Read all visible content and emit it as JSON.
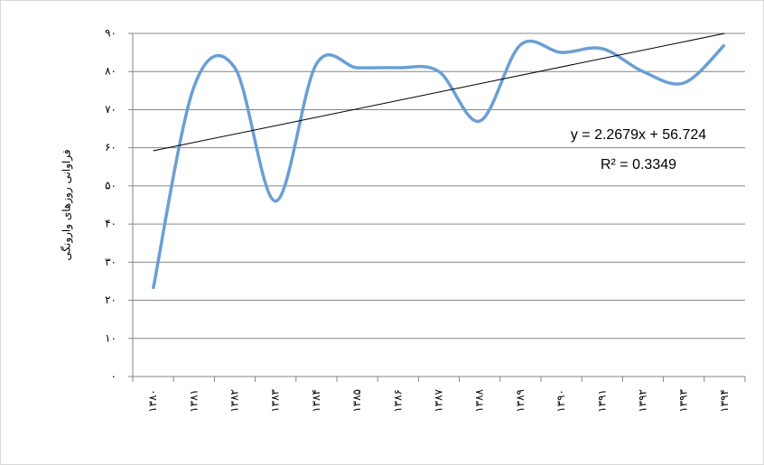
{
  "chart_data": {
    "type": "line",
    "y_axis_label": "فراوانی روزهای وارونگی",
    "categories": [
      "۱۳۸۰",
      "۱۳۸۱",
      "۱۳۸۲",
      "۱۳۸۳",
      "۱۳۸۴",
      "۱۳۸۵",
      "۱۳۸۶",
      "۱۳۸۷",
      "۱۳۸۸",
      "۱۳۸۹",
      "۱۳۹۰",
      "۱۳۹۱",
      "۱۳۹۲",
      "۱۳۹۳",
      "۱۳۹۴"
    ],
    "series": [
      {
        "color": "#6a9fd4",
        "values": [
          23,
          76,
          81,
          46,
          82,
          81,
          81,
          80,
          67,
          87,
          85,
          86,
          80,
          77,
          87
        ]
      }
    ],
    "trendline": true,
    "annotations": [
      "y = 2.2679x + 56.724",
      "R² = 0.3349"
    ],
    "ylim": [
      0,
      90
    ],
    "yticks": [
      {
        "value": 0,
        "label": "۰"
      },
      {
        "value": 10,
        "label": "۱۰"
      },
      {
        "value": 20,
        "label": "۲۰"
      },
      {
        "value": 30,
        "label": "۳۰"
      },
      {
        "value": 40,
        "label": "۴۰"
      },
      {
        "value": 50,
        "label": "۵۰"
      },
      {
        "value": 60,
        "label": "۶۰"
      },
      {
        "value": 70,
        "label": "۷۰"
      },
      {
        "value": 80,
        "label": "۸۰"
      },
      {
        "value": 90,
        "label": "۹۰"
      }
    ],
    "grid": true
  }
}
